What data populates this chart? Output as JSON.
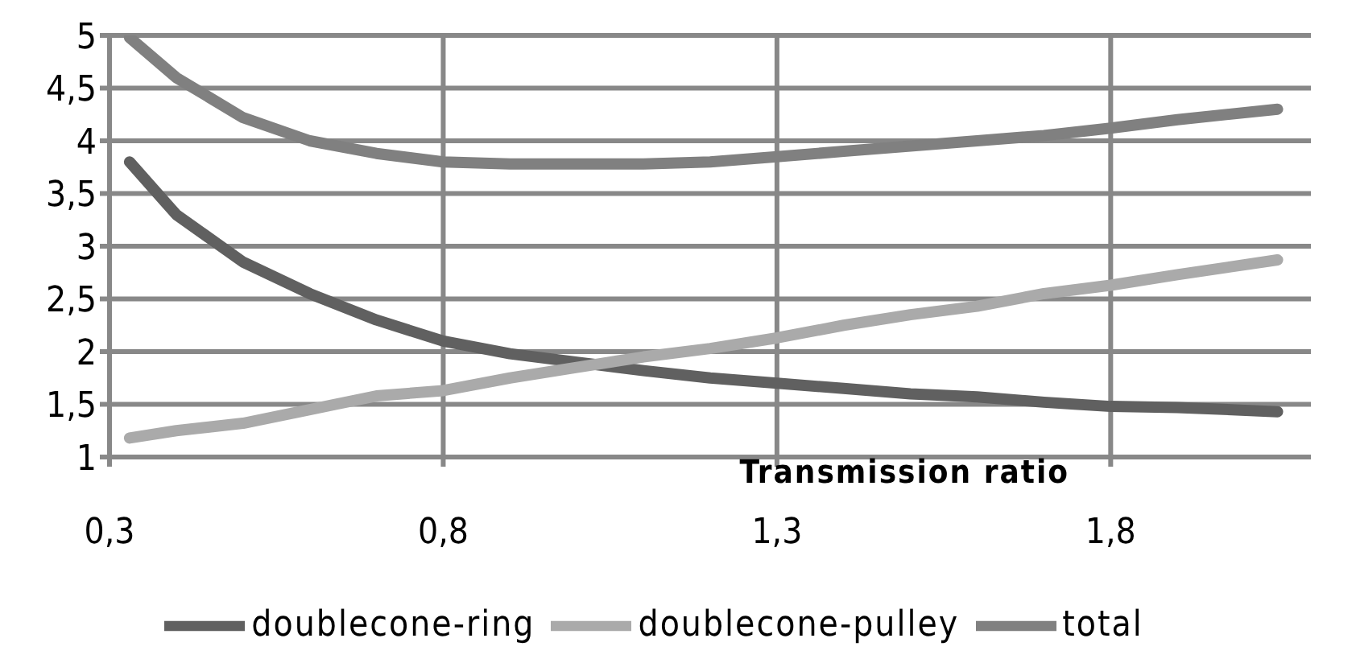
{
  "chart_data": {
    "type": "line",
    "xlabel": "Transmission ratio",
    "x": [
      0.33,
      0.4,
      0.5,
      0.6,
      0.7,
      0.8,
      0.9,
      1.0,
      1.1,
      1.2,
      1.3,
      1.4,
      1.5,
      1.6,
      1.7,
      1.8,
      1.9,
      2.05
    ],
    "series": [
      {
        "name": "doublecone-ring",
        "color": "#606060",
        "values": [
          3.8,
          3.3,
          2.85,
          2.55,
          2.3,
          2.1,
          1.98,
          1.9,
          1.82,
          1.75,
          1.7,
          1.65,
          1.6,
          1.57,
          1.52,
          1.48,
          1.47,
          1.43
        ]
      },
      {
        "name": "doublecone-pulley",
        "color": "#aaaaaa",
        "values": [
          1.18,
          1.25,
          1.32,
          1.45,
          1.58,
          1.63,
          1.75,
          1.85,
          1.95,
          2.03,
          2.13,
          2.25,
          2.35,
          2.43,
          2.55,
          2.63,
          2.73,
          2.87
        ]
      },
      {
        "name": "total",
        "color": "#808080",
        "values": [
          4.98,
          4.6,
          4.22,
          4.0,
          3.88,
          3.8,
          3.78,
          3.78,
          3.78,
          3.8,
          3.85,
          3.9,
          3.95,
          4.0,
          4.05,
          4.12,
          4.2,
          4.3
        ]
      }
    ],
    "xlim": [
      0.3,
      2.1
    ],
    "xticks": [
      {
        "value": 0.3,
        "label": "0,3"
      },
      {
        "value": 0.8,
        "label": "0,8"
      },
      {
        "value": 1.3,
        "label": "1,3"
      },
      {
        "value": 1.8,
        "label": "1,8"
      }
    ],
    "ylim": [
      1,
      5
    ],
    "yticks": [
      1,
      {
        "value": 1.5,
        "label": "1,5"
      },
      2,
      {
        "value": 2.5,
        "label": "2,5"
      },
      3,
      {
        "value": 3.5,
        "label": "3,5"
      },
      4,
      {
        "value": 4.5,
        "label": "4,5"
      },
      5
    ],
    "grid": true,
    "legend": "bottom",
    "marker": "none",
    "line_style": "solid"
  }
}
